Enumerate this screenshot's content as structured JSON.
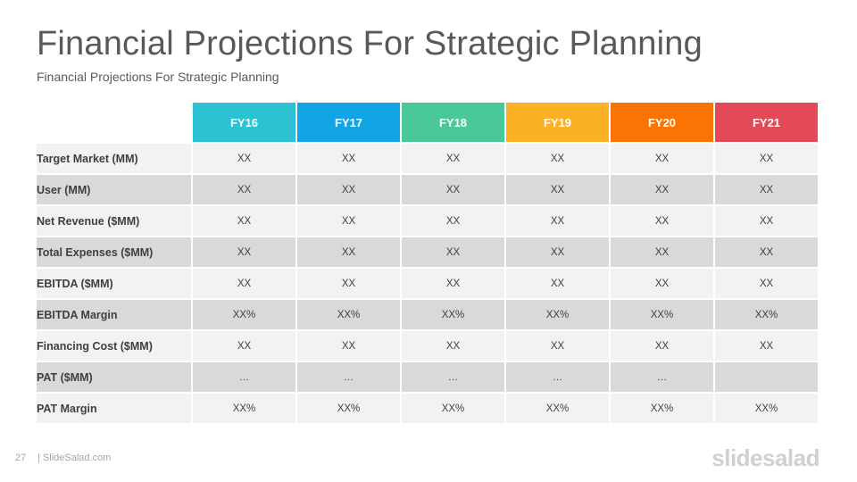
{
  "slide": {
    "title": "Financial Projections For Strategic Planning",
    "subtitle": "Financial Projections For Strategic Planning"
  },
  "table": {
    "years": [
      {
        "label": "FY16",
        "color": "#2bc3d4"
      },
      {
        "label": "FY17",
        "color": "#13a4e5"
      },
      {
        "label": "FY18",
        "color": "#4bc89a"
      },
      {
        "label": "FY19",
        "color": "#fbb125"
      },
      {
        "label": "FY20",
        "color": "#fb7303"
      },
      {
        "label": "FY21",
        "color": "#e34a58"
      }
    ],
    "rows": [
      {
        "label": "Target Market (MM)",
        "values": [
          "XX",
          "XX",
          "XX",
          "XX",
          "XX",
          "XX"
        ]
      },
      {
        "label": "User (MM)",
        "values": [
          "XX",
          "XX",
          "XX",
          "XX",
          "XX",
          "XX"
        ]
      },
      {
        "label": "Net Revenue ($MM)",
        "values": [
          "XX",
          "XX",
          "XX",
          "XX",
          "XX",
          "XX"
        ]
      },
      {
        "label": "Total Expenses ($MM)",
        "values": [
          "XX",
          "XX",
          "XX",
          "XX",
          "XX",
          "XX"
        ]
      },
      {
        "label": "EBITDA ($MM)",
        "values": [
          "XX",
          "XX",
          "XX",
          "XX",
          "XX",
          "XX"
        ]
      },
      {
        "label": "EBITDA Margin",
        "values": [
          "XX%",
          "XX%",
          "XX%",
          "XX%",
          "XX%",
          "XX%"
        ]
      },
      {
        "label": "Financing Cost ($MM)",
        "values": [
          "XX",
          "XX",
          "XX",
          "XX",
          "XX",
          "XX"
        ]
      },
      {
        "label": "PAT ($MM)",
        "values": [
          "…",
          "…",
          "…",
          "…",
          "…",
          ""
        ]
      },
      {
        "label": "PAT Margin",
        "values": [
          "XX%",
          "XX%",
          "XX%",
          "XX%",
          "XX%",
          "XX%"
        ]
      }
    ]
  },
  "footer": {
    "page_number": "27",
    "site": "| SlideSalad.com",
    "brand": "slidesalad"
  }
}
